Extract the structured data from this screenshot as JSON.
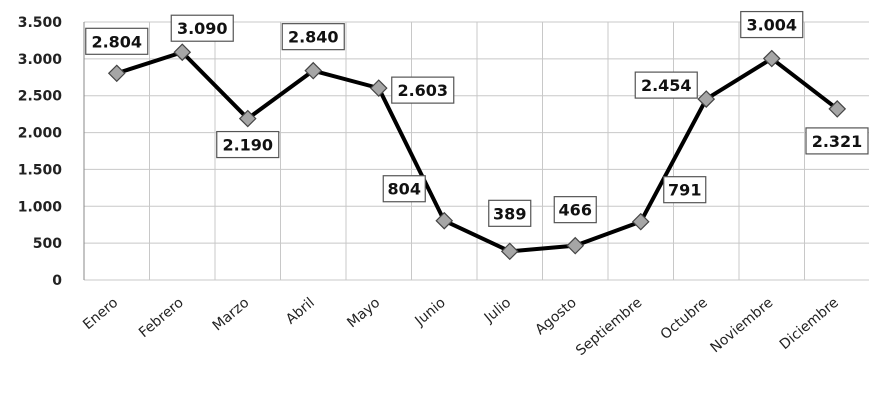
{
  "chart_data": {
    "type": "line",
    "title": "",
    "xlabel": "",
    "ylabel": "",
    "ylim": [
      0,
      3500
    ],
    "yticks": [
      0,
      500,
      1000,
      1500,
      2000,
      2500,
      3000,
      3500
    ],
    "ytick_labels": [
      "0",
      "500",
      "1.000",
      "1.500",
      "2.000",
      "2.500",
      "3.000",
      "3.500"
    ],
    "grid": true,
    "legend": "none",
    "categories": [
      "Enero",
      "Febrero",
      "Marzo",
      "Abril",
      "Mayo",
      "Junio",
      "Julio",
      "Agosto",
      "Septiembre",
      "Octubre",
      "Noviembre",
      "Diciembre"
    ],
    "series": [
      {
        "values": [
          2804,
          3090,
          2190,
          2840,
          2603,
          804,
          389,
          466,
          791,
          2454,
          3004,
          2321
        ],
        "data_labels": [
          "2.804",
          "3.090",
          "2.190",
          "2.840",
          "2.603",
          "804",
          "389",
          "466",
          "791",
          "2.454",
          "3.004",
          "2.321"
        ],
        "color": "#000000",
        "marker_color": "#a6a6a6"
      }
    ]
  }
}
